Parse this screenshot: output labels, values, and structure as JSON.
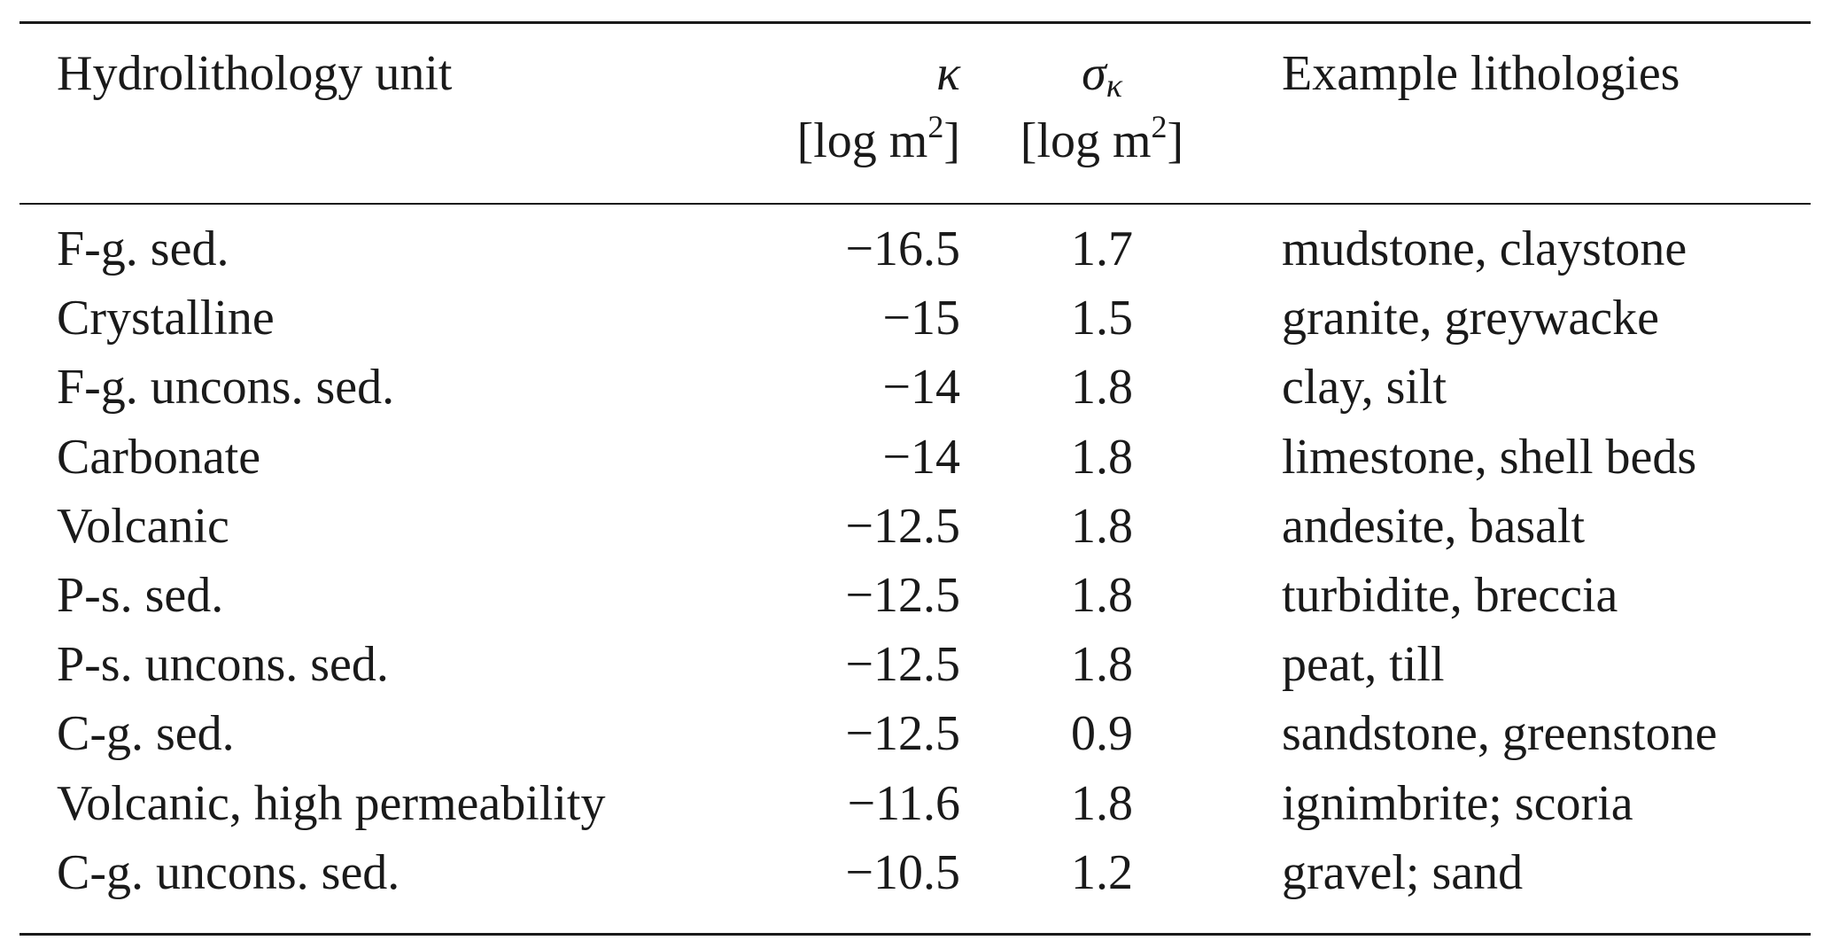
{
  "table": {
    "headers": {
      "unit": "Hydrolithology unit",
      "kappa_symbol": "κ",
      "kappa_unit_pre": "[log m",
      "kappa_unit_sup": "2",
      "kappa_unit_post": "]",
      "sigma_symbol": "σ",
      "sigma_sub": "κ",
      "sigma_unit_pre": "[log m",
      "sigma_unit_sup": "2",
      "sigma_unit_post": "]",
      "examples": "Example lithologies"
    },
    "rows": [
      {
        "unit": "F-g. sed.",
        "kappa": "−16.5",
        "sigma": "1.7",
        "examples": "mudstone, claystone"
      },
      {
        "unit": "Crystalline",
        "kappa": "−15",
        "sigma": "1.5",
        "examples": "granite, greywacke"
      },
      {
        "unit": "F-g. uncons. sed.",
        "kappa": "−14",
        "sigma": "1.8",
        "examples": "clay, silt"
      },
      {
        "unit": "Carbonate",
        "kappa": "−14",
        "sigma": "1.8",
        "examples": "limestone, shell beds"
      },
      {
        "unit": "Volcanic",
        "kappa": "−12.5",
        "sigma": "1.8",
        "examples": "andesite, basalt"
      },
      {
        "unit": "P-s. sed.",
        "kappa": "−12.5",
        "sigma": "1.8",
        "examples": "turbidite, breccia"
      },
      {
        "unit": "P-s. uncons. sed.",
        "kappa": "−12.5",
        "sigma": "1.8",
        "examples": "peat, till"
      },
      {
        "unit": "C-g. sed.",
        "kappa": "−12.5",
        "sigma": "0.9",
        "examples": "sandstone, greenstone"
      },
      {
        "unit": "Volcanic, high permeability",
        "kappa": "−11.6",
        "sigma": "1.8",
        "examples": "ignimbrite; scoria"
      },
      {
        "unit": "C-g. uncons. sed.",
        "kappa": "−10.5",
        "sigma": "1.2",
        "examples": "gravel; sand"
      }
    ]
  }
}
